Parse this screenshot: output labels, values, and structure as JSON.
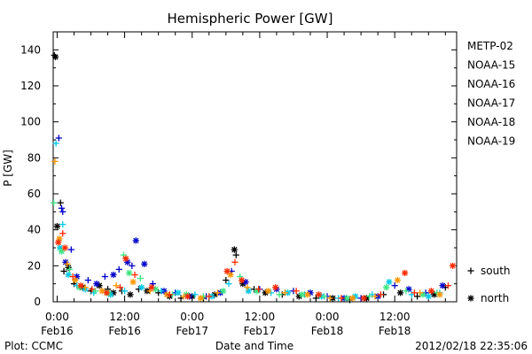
{
  "chart_data": {
    "type": "scatter",
    "title": "Hemispheric Power [GW]",
    "xlabel": "Date and Time",
    "ylabel": "P [GW]",
    "ylim": [
      0,
      150
    ],
    "yticks": [
      0,
      20,
      40,
      60,
      80,
      100,
      120,
      140
    ],
    "xlim_hours": [
      -0.7,
      71
    ],
    "xticks": [
      {
        "hour": 0,
        "line1": "0:00",
        "line2": "Feb16"
      },
      {
        "hour": 12,
        "line1": "12:00",
        "line2": "Feb16"
      },
      {
        "hour": 24,
        "line1": "0:00",
        "line2": "Feb17"
      },
      {
        "hour": 36,
        "line1": "12:00",
        "line2": "Feb17"
      },
      {
        "hour": 48,
        "line1": "0:00",
        "line2": "Feb18"
      },
      {
        "hour": 60,
        "line1": "12:00",
        "line2": "Feb18"
      }
    ],
    "grid": false,
    "legend": "right",
    "series": [
      {
        "name": "METP-02",
        "color": "#000000"
      },
      {
        "name": "NOAA-15",
        "color": "#0000cc"
      },
      {
        "name": "NOAA-16",
        "color": "#00c8e6"
      },
      {
        "name": "NOAA-17",
        "color": "#3ce682"
      },
      {
        "name": "NOAA-18",
        "color": "#ff9600"
      },
      {
        "name": "NOAA-19",
        "color": "#ff2a00"
      }
    ],
    "markers": [
      {
        "symbol": "+",
        "label": "south"
      },
      {
        "symbol": "*",
        "label": "north"
      }
    ],
    "points": [
      {
        "s": 0,
        "m": "+",
        "x": -0.5,
        "y": 137
      },
      {
        "s": 0,
        "m": "*",
        "x": -0.3,
        "y": 136
      },
      {
        "s": 0,
        "m": "*",
        "x": 0.0,
        "y": 42
      },
      {
        "s": 0,
        "m": "+",
        "x": 0.6,
        "y": 55
      },
      {
        "s": 0,
        "m": "+",
        "x": 1.2,
        "y": 17
      },
      {
        "s": 0,
        "m": "*",
        "x": 2.0,
        "y": 19
      },
      {
        "s": 0,
        "m": "+",
        "x": 3.0,
        "y": 10
      },
      {
        "s": 0,
        "m": "*",
        "x": 4.5,
        "y": 8
      },
      {
        "s": 0,
        "m": "+",
        "x": 6.0,
        "y": 6
      },
      {
        "s": 0,
        "m": "*",
        "x": 7.5,
        "y": 9
      },
      {
        "s": 0,
        "m": "+",
        "x": 9.0,
        "y": 7
      },
      {
        "s": 0,
        "m": "*",
        "x": 10.0,
        "y": 5
      },
      {
        "s": 0,
        "m": "+",
        "x": 11.5,
        "y": 6
      },
      {
        "s": 0,
        "m": "*",
        "x": 13.0,
        "y": 4
      },
      {
        "s": 0,
        "m": "+",
        "x": 14.5,
        "y": 7
      },
      {
        "s": 0,
        "m": "*",
        "x": 16.0,
        "y": 6
      },
      {
        "s": 0,
        "m": "+",
        "x": 18.0,
        "y": 5
      },
      {
        "s": 0,
        "m": "*",
        "x": 20.0,
        "y": 3
      },
      {
        "s": 0,
        "m": "+",
        "x": 22.0,
        "y": 2
      },
      {
        "s": 0,
        "m": "*",
        "x": 24.0,
        "y": 3
      },
      {
        "s": 0,
        "m": "+",
        "x": 26.0,
        "y": 2
      },
      {
        "s": 0,
        "m": "*",
        "x": 28.0,
        "y": 4
      },
      {
        "s": 0,
        "m": "+",
        "x": 30.0,
        "y": 12
      },
      {
        "s": 0,
        "m": "*",
        "x": 31.5,
        "y": 29
      },
      {
        "s": 0,
        "m": "+",
        "x": 31.8,
        "y": 26
      },
      {
        "s": 0,
        "m": "*",
        "x": 33.0,
        "y": 10
      },
      {
        "s": 0,
        "m": "+",
        "x": 35.0,
        "y": 7
      },
      {
        "s": 0,
        "m": "*",
        "x": 37.0,
        "y": 5
      },
      {
        "s": 0,
        "m": "+",
        "x": 40.0,
        "y": 4
      },
      {
        "s": 0,
        "m": "*",
        "x": 43.0,
        "y": 3
      },
      {
        "s": 0,
        "m": "+",
        "x": 46.0,
        "y": 2
      },
      {
        "s": 0,
        "m": "*",
        "x": 49.0,
        "y": 2
      },
      {
        "s": 0,
        "m": "+",
        "x": 52.0,
        "y": 1
      },
      {
        "s": 0,
        "m": "*",
        "x": 55.0,
        "y": 2
      },
      {
        "s": 0,
        "m": "+",
        "x": 58.0,
        "y": 4
      },
      {
        "s": 0,
        "m": "*",
        "x": 61.0,
        "y": 5
      },
      {
        "s": 0,
        "m": "+",
        "x": 64.0,
        "y": 3
      },
      {
        "s": 0,
        "m": "*",
        "x": 67.0,
        "y": 4
      },
      {
        "s": 0,
        "m": "+",
        "x": 69.0,
        "y": 8
      },
      {
        "s": 1,
        "m": "+",
        "x": 0.3,
        "y": 91
      },
      {
        "s": 1,
        "m": "+",
        "x": 0.8,
        "y": 52
      },
      {
        "s": 1,
        "m": "+",
        "x": 1.0,
        "y": 50
      },
      {
        "s": 1,
        "m": "*",
        "x": 1.5,
        "y": 22
      },
      {
        "s": 1,
        "m": "+",
        "x": 2.5,
        "y": 29
      },
      {
        "s": 1,
        "m": "*",
        "x": 3.5,
        "y": 14
      },
      {
        "s": 1,
        "m": "+",
        "x": 5.5,
        "y": 12
      },
      {
        "s": 1,
        "m": "*",
        "x": 7.0,
        "y": 10
      },
      {
        "s": 1,
        "m": "+",
        "x": 8.5,
        "y": 14
      },
      {
        "s": 1,
        "m": "*",
        "x": 10.0,
        "y": 15
      },
      {
        "s": 1,
        "m": "+",
        "x": 11.0,
        "y": 18
      },
      {
        "s": 1,
        "m": "*",
        "x": 12.5,
        "y": 22
      },
      {
        "s": 1,
        "m": "+",
        "x": 13.3,
        "y": 20
      },
      {
        "s": 1,
        "m": "*",
        "x": 14.0,
        "y": 34
      },
      {
        "s": 1,
        "m": "*",
        "x": 15.5,
        "y": 21
      },
      {
        "s": 1,
        "m": "+",
        "x": 17.0,
        "y": 10
      },
      {
        "s": 1,
        "m": "*",
        "x": 19.0,
        "y": 6
      },
      {
        "s": 1,
        "m": "+",
        "x": 21.0,
        "y": 5
      },
      {
        "s": 1,
        "m": "*",
        "x": 23.5,
        "y": 3
      },
      {
        "s": 1,
        "m": "+",
        "x": 26.5,
        "y": 3
      },
      {
        "s": 1,
        "m": "*",
        "x": 29.0,
        "y": 5
      },
      {
        "s": 1,
        "m": "+",
        "x": 31.0,
        "y": 17
      },
      {
        "s": 1,
        "m": "*",
        "x": 33.5,
        "y": 11
      },
      {
        "s": 1,
        "m": "+",
        "x": 36.0,
        "y": 7
      },
      {
        "s": 1,
        "m": "*",
        "x": 39.0,
        "y": 7
      },
      {
        "s": 1,
        "m": "+",
        "x": 42.0,
        "y": 6
      },
      {
        "s": 1,
        "m": "*",
        "x": 45.0,
        "y": 5
      },
      {
        "s": 1,
        "m": "+",
        "x": 48.0,
        "y": 3
      },
      {
        "s": 1,
        "m": "*",
        "x": 51.0,
        "y": 2
      },
      {
        "s": 1,
        "m": "+",
        "x": 54.0,
        "y": 2
      },
      {
        "s": 1,
        "m": "*",
        "x": 57.0,
        "y": 3
      },
      {
        "s": 1,
        "m": "+",
        "x": 60.0,
        "y": 9
      },
      {
        "s": 1,
        "m": "*",
        "x": 62.5,
        "y": 7
      },
      {
        "s": 1,
        "m": "+",
        "x": 65.5,
        "y": 5
      },
      {
        "s": 1,
        "m": "*",
        "x": 68.5,
        "y": 9
      },
      {
        "s": 2,
        "m": "+",
        "x": -0.2,
        "y": 88
      },
      {
        "s": 2,
        "m": "*",
        "x": 0.5,
        "y": 30
      },
      {
        "s": 2,
        "m": "+",
        "x": 1.0,
        "y": 43
      },
      {
        "s": 2,
        "m": "*",
        "x": 2.0,
        "y": 15
      },
      {
        "s": 2,
        "m": "+",
        "x": 3.5,
        "y": 9
      },
      {
        "s": 2,
        "m": "*",
        "x": 5.0,
        "y": 7
      },
      {
        "s": 2,
        "m": "+",
        "x": 6.5,
        "y": 5
      },
      {
        "s": 2,
        "m": "*",
        "x": 9.5,
        "y": 4
      },
      {
        "s": 2,
        "m": "+",
        "x": 12.0,
        "y": 6
      },
      {
        "s": 2,
        "m": "*",
        "x": 15.0,
        "y": 8
      },
      {
        "s": 2,
        "m": "+",
        "x": 18.5,
        "y": 6
      },
      {
        "s": 2,
        "m": "*",
        "x": 21.5,
        "y": 5
      },
      {
        "s": 2,
        "m": "+",
        "x": 24.5,
        "y": 4
      },
      {
        "s": 2,
        "m": "*",
        "x": 27.5,
        "y": 3
      },
      {
        "s": 2,
        "m": "+",
        "x": 30.5,
        "y": 10
      },
      {
        "s": 2,
        "m": "*",
        "x": 34.0,
        "y": 6
      },
      {
        "s": 2,
        "m": "+",
        "x": 38.0,
        "y": 5
      },
      {
        "s": 2,
        "m": "*",
        "x": 41.0,
        "y": 5
      },
      {
        "s": 2,
        "m": "+",
        "x": 44.0,
        "y": 4
      },
      {
        "s": 2,
        "m": "*",
        "x": 47.0,
        "y": 3
      },
      {
        "s": 2,
        "m": "+",
        "x": 50.0,
        "y": 2
      },
      {
        "s": 2,
        "m": "*",
        "x": 53.0,
        "y": 3
      },
      {
        "s": 2,
        "m": "+",
        "x": 56.0,
        "y": 4
      },
      {
        "s": 2,
        "m": "*",
        "x": 59.0,
        "y": 11
      },
      {
        "s": 2,
        "m": "+",
        "x": 63.0,
        "y": 4
      },
      {
        "s": 2,
        "m": "*",
        "x": 66.0,
        "y": 3
      },
      {
        "s": 2,
        "m": "+",
        "x": 68.0,
        "y": 5
      },
      {
        "s": 3,
        "m": "+",
        "x": -0.6,
        "y": 55
      },
      {
        "s": 3,
        "m": "*",
        "x": 0.8,
        "y": 28
      },
      {
        "s": 3,
        "m": "+",
        "x": 2.2,
        "y": 18
      },
      {
        "s": 3,
        "m": "*",
        "x": 4.0,
        "y": 8
      },
      {
        "s": 3,
        "m": "+",
        "x": 6.8,
        "y": 6
      },
      {
        "s": 3,
        "m": "*",
        "x": 9.0,
        "y": 5
      },
      {
        "s": 3,
        "m": "+",
        "x": 11.8,
        "y": 26
      },
      {
        "s": 3,
        "m": "*",
        "x": 12.8,
        "y": 16
      },
      {
        "s": 3,
        "m": "+",
        "x": 14.8,
        "y": 13
      },
      {
        "s": 3,
        "m": "*",
        "x": 17.5,
        "y": 7
      },
      {
        "s": 3,
        "m": "+",
        "x": 20.5,
        "y": 4
      },
      {
        "s": 3,
        "m": "*",
        "x": 23.0,
        "y": 4
      },
      {
        "s": 3,
        "m": "+",
        "x": 26.0,
        "y": 3
      },
      {
        "s": 3,
        "m": "*",
        "x": 29.5,
        "y": 6
      },
      {
        "s": 3,
        "m": "+",
        "x": 32.5,
        "y": 14
      },
      {
        "s": 3,
        "m": "*",
        "x": 35.5,
        "y": 6
      },
      {
        "s": 3,
        "m": "+",
        "x": 39.5,
        "y": 4
      },
      {
        "s": 3,
        "m": "*",
        "x": 43.5,
        "y": 4
      },
      {
        "s": 3,
        "m": "+",
        "x": 47.5,
        "y": 3
      },
      {
        "s": 3,
        "m": "*",
        "x": 51.5,
        "y": 2
      },
      {
        "s": 3,
        "m": "+",
        "x": 55.5,
        "y": 3
      },
      {
        "s": 3,
        "m": "*",
        "x": 58.5,
        "y": 8
      },
      {
        "s": 3,
        "m": "+",
        "x": 62.0,
        "y": 6
      },
      {
        "s": 3,
        "m": "*",
        "x": 65.0,
        "y": 4
      },
      {
        "s": 3,
        "m": "+",
        "x": 67.5,
        "y": 5
      },
      {
        "s": 4,
        "m": "+",
        "x": -0.4,
        "y": 78
      },
      {
        "s": 4,
        "m": "*",
        "x": 0.4,
        "y": 35
      },
      {
        "s": 4,
        "m": "+",
        "x": 1.8,
        "y": 21
      },
      {
        "s": 4,
        "m": "*",
        "x": 3.2,
        "y": 12
      },
      {
        "s": 4,
        "m": "+",
        "x": 5.0,
        "y": 8
      },
      {
        "s": 4,
        "m": "*",
        "x": 8.0,
        "y": 6
      },
      {
        "s": 4,
        "m": "+",
        "x": 10.5,
        "y": 9
      },
      {
        "s": 4,
        "m": "*",
        "x": 13.5,
        "y": 11
      },
      {
        "s": 4,
        "m": "+",
        "x": 16.5,
        "y": 6
      },
      {
        "s": 4,
        "m": "*",
        "x": 19.5,
        "y": 4
      },
      {
        "s": 4,
        "m": "+",
        "x": 22.5,
        "y": 3
      },
      {
        "s": 4,
        "m": "*",
        "x": 25.5,
        "y": 2
      },
      {
        "s": 4,
        "m": "+",
        "x": 28.5,
        "y": 5
      },
      {
        "s": 4,
        "m": "*",
        "x": 30.8,
        "y": 15
      },
      {
        "s": 4,
        "m": "+",
        "x": 33.8,
        "y": 8
      },
      {
        "s": 4,
        "m": "*",
        "x": 37.5,
        "y": 6
      },
      {
        "s": 4,
        "m": "+",
        "x": 40.5,
        "y": 5
      },
      {
        "s": 4,
        "m": "*",
        "x": 44.5,
        "y": 4
      },
      {
        "s": 4,
        "m": "+",
        "x": 48.5,
        "y": 2
      },
      {
        "s": 4,
        "m": "*",
        "x": 52.5,
        "y": 2
      },
      {
        "s": 4,
        "m": "+",
        "x": 56.5,
        "y": 3
      },
      {
        "s": 4,
        "m": "*",
        "x": 60.5,
        "y": 12
      },
      {
        "s": 4,
        "m": "+",
        "x": 64.5,
        "y": 5
      },
      {
        "s": 4,
        "m": "*",
        "x": 68.0,
        "y": 4
      },
      {
        "s": 5,
        "m": "*",
        "x": 0.2,
        "y": 33
      },
      {
        "s": 5,
        "m": "+",
        "x": 1.0,
        "y": 38
      },
      {
        "s": 5,
        "m": "*",
        "x": 1.4,
        "y": 30
      },
      {
        "s": 5,
        "m": "+",
        "x": 2.8,
        "y": 14
      },
      {
        "s": 5,
        "m": "*",
        "x": 4.2,
        "y": 9
      },
      {
        "s": 5,
        "m": "+",
        "x": 6.2,
        "y": 7
      },
      {
        "s": 5,
        "m": "*",
        "x": 8.8,
        "y": 5
      },
      {
        "s": 5,
        "m": "+",
        "x": 11.2,
        "y": 8
      },
      {
        "s": 5,
        "m": "*",
        "x": 12.2,
        "y": 24
      },
      {
        "s": 5,
        "m": "+",
        "x": 13.8,
        "y": 15
      },
      {
        "s": 5,
        "m": "*",
        "x": 16.8,
        "y": 8
      },
      {
        "s": 5,
        "m": "+",
        "x": 20.0,
        "y": 4
      },
      {
        "s": 5,
        "m": "*",
        "x": 23.2,
        "y": 3
      },
      {
        "s": 5,
        "m": "+",
        "x": 27.0,
        "y": 3
      },
      {
        "s": 5,
        "m": "*",
        "x": 30.2,
        "y": 17
      },
      {
        "s": 5,
        "m": "+",
        "x": 31.6,
        "y": 22
      },
      {
        "s": 5,
        "m": "*",
        "x": 32.8,
        "y": 12
      },
      {
        "s": 5,
        "m": "+",
        "x": 35.8,
        "y": 7
      },
      {
        "s": 5,
        "m": "*",
        "x": 38.8,
        "y": 8
      },
      {
        "s": 5,
        "m": "+",
        "x": 42.5,
        "y": 6
      },
      {
        "s": 5,
        "m": "*",
        "x": 46.5,
        "y": 4
      },
      {
        "s": 5,
        "m": "+",
        "x": 50.5,
        "y": 2
      },
      {
        "s": 5,
        "m": "*",
        "x": 54.5,
        "y": 2
      },
      {
        "s": 5,
        "m": "+",
        "x": 57.5,
        "y": 4
      },
      {
        "s": 5,
        "m": "*",
        "x": 61.8,
        "y": 16
      },
      {
        "s": 5,
        "m": "+",
        "x": 63.5,
        "y": 5
      },
      {
        "s": 5,
        "m": "*",
        "x": 66.5,
        "y": 6
      },
      {
        "s": 5,
        "m": "+",
        "x": 69.5,
        "y": 9
      },
      {
        "s": 5,
        "m": "*",
        "x": 70.3,
        "y": 20
      }
    ]
  },
  "footer": {
    "plot_source": "Plot: CCMC",
    "timestamp": "2012/02/18 22:35:06"
  }
}
